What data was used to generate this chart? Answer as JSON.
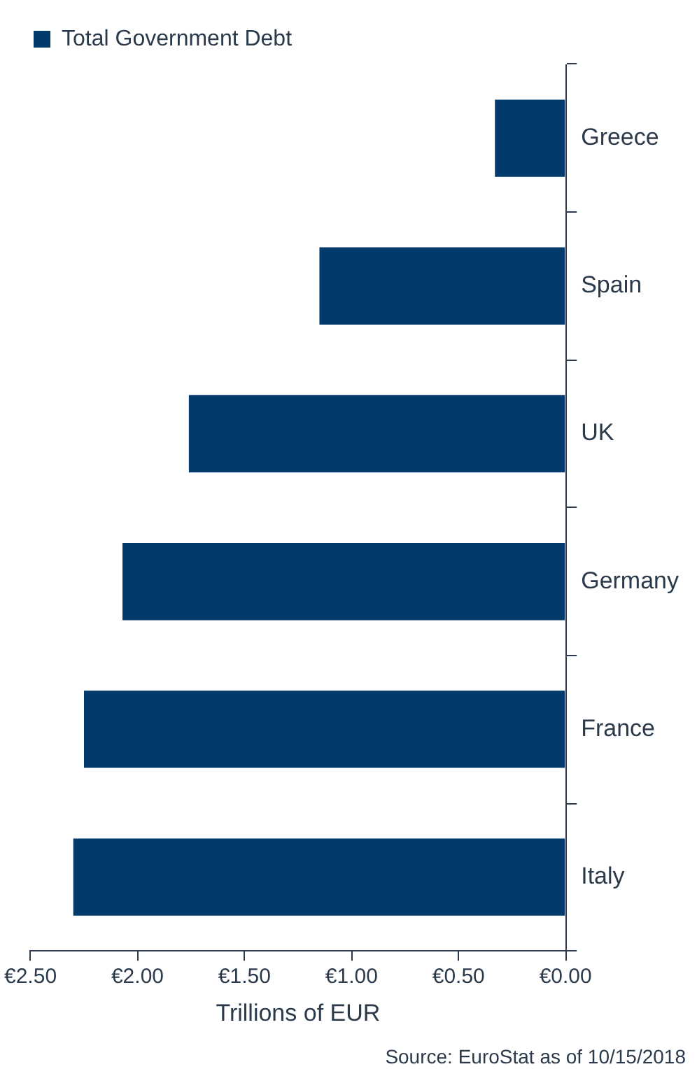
{
  "chart_data": {
    "type": "bar",
    "orientation": "horizontal",
    "categories": [
      "Greece",
      "Spain",
      "UK",
      "Germany",
      "France",
      "Italy"
    ],
    "series": [
      {
        "name": "Total Government Debt",
        "color": "#023a6b",
        "values": [
          0.33,
          1.15,
          1.76,
          2.07,
          2.25,
          2.3
        ]
      }
    ],
    "xlabel": "Trillions of EUR",
    "xlim": [
      2.5,
      0
    ],
    "xticks": [
      {
        "value": 2.5,
        "label": "€2.50"
      },
      {
        "value": 2,
        "label": "€2.00"
      },
      {
        "value": 1.5,
        "label": "€1.50"
      },
      {
        "value": 1,
        "label": "€1.00"
      },
      {
        "value": 0.5,
        "label": "€0.50"
      },
      {
        "value": 0,
        "label": "€0.00"
      }
    ],
    "grid": false,
    "legend": "top",
    "annotations": [
      "Source: EuroStat as of 10/15/2018"
    ]
  }
}
